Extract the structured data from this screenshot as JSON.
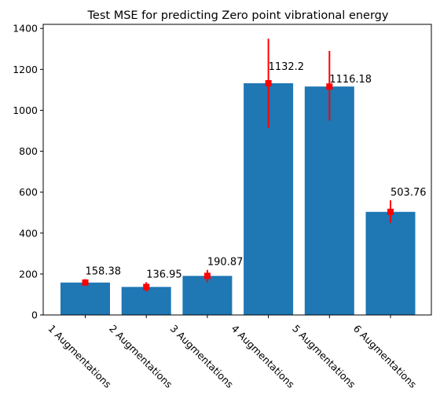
{
  "chart_data": {
    "type": "bar",
    "title": "Test MSE for predicting Zero point vibrational energy",
    "xlabel": "",
    "ylabel": "",
    "categories": [
      "1 Augmentations",
      "2 Augmentations",
      "3 Augmentations",
      "4 Augmentations",
      "5 Augmentations",
      "6 Augmentations"
    ],
    "values": [
      158.38,
      136.95,
      190.87,
      1132.2,
      1116.18,
      503.76
    ],
    "value_labels": [
      "158.38",
      "136.95",
      "190.87",
      "1132.2",
      "1116.18",
      "503.76"
    ],
    "error_low": [
      145,
      115,
      160,
      915,
      950,
      450
    ],
    "error_high": [
      175,
      160,
      220,
      1350,
      1290,
      560
    ],
    "ylim": [
      0,
      1420
    ],
    "yticks": [
      0,
      200,
      400,
      600,
      800,
      1000,
      1200,
      1400
    ],
    "ytick_labels": [
      "0",
      "200",
      "400",
      "600",
      "800",
      "1000",
      "1200",
      "1400"
    ],
    "grid": false,
    "colors": {
      "bar": "#1f77b4",
      "error": "#ff0000"
    }
  }
}
